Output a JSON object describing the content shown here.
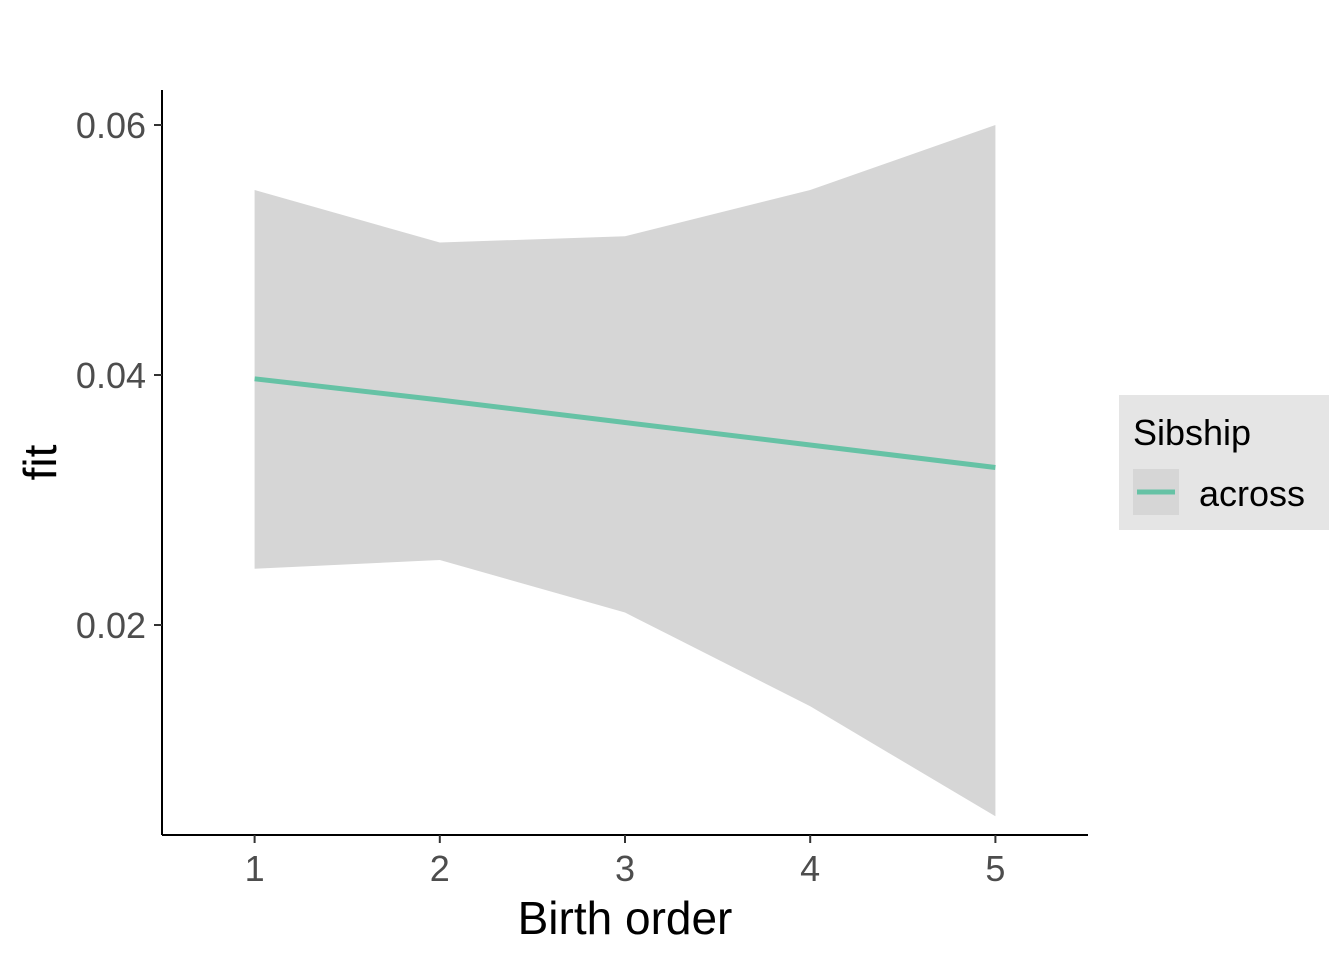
{
  "chart_data": {
    "type": "line",
    "title": "",
    "xlabel": "Birth order",
    "ylabel": "fit",
    "x": [
      1,
      2,
      3,
      4,
      5
    ],
    "xlim": [
      0.5,
      5.5
    ],
    "ylim": [
      0.0032,
      0.0628
    ],
    "x_ticks": [
      "1",
      "2",
      "3",
      "4",
      "5"
    ],
    "y_ticks": [
      0.02,
      0.04,
      0.06
    ],
    "y_tick_labels": [
      "0.02",
      "0.04",
      "0.06"
    ],
    "grid": false,
    "legend": {
      "title": "Sibship",
      "placement": "right"
    },
    "series": [
      {
        "name": "across",
        "color": "#66c2a5",
        "values": [
          0.0397,
          0.038,
          0.0362,
          0.0344,
          0.0326
        ],
        "lower": [
          0.0245,
          0.0252,
          0.021,
          0.0135,
          0.0047
        ],
        "upper": [
          0.0548,
          0.0506,
          0.0511,
          0.0548,
          0.06
        ]
      }
    ],
    "ribbon_color": "#d6d6d6"
  }
}
